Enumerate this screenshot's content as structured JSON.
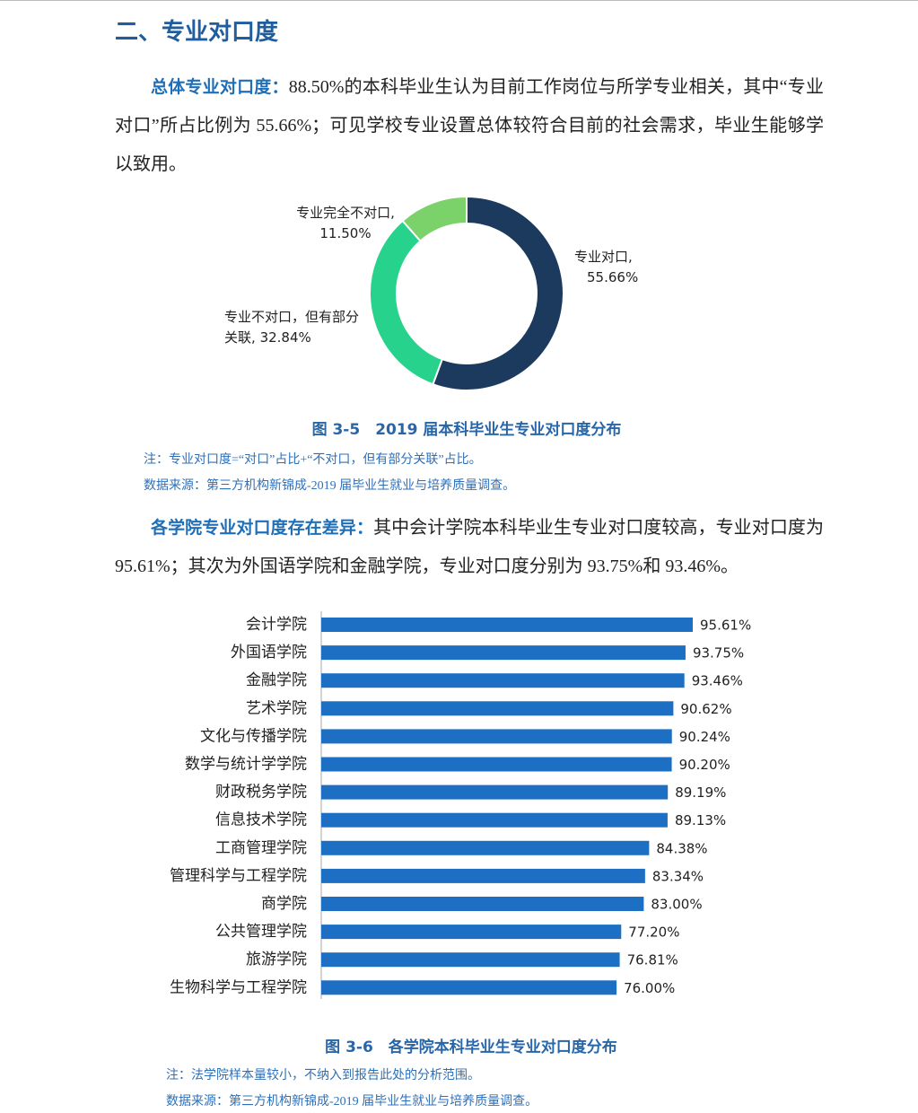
{
  "heading": "二、专业对口度",
  "paragraph_1": {
    "lead": "总体专业对口度：",
    "text": "88.50%的本科毕业生认为目前工作岗位与所学专业相关，其中“专业对口”所占比例为 55.66%；可见学校专业设置总体较符合目前的社会需求，毕业生能够学以致用。"
  },
  "figure_1": {
    "caption": "图 3-5　2019 届本科毕业生专业对口度分布",
    "note": "注：专业对口度=“对口”占比+“不对口，但有部分关联”占比。",
    "source": "数据来源：第三方机构新锦成-2019 届毕业生就业与培养质量调查。"
  },
  "paragraph_2": {
    "lead": "各学院专业对口度存在差异：",
    "text": "其中会计学院本科毕业生专业对口度较高，专业对口度为 95.61%；其次为外国语学院和金融学院，专业对口度分别为 93.75%和 93.46%。"
  },
  "figure_2": {
    "caption": "图 3-6　各学院本科毕业生专业对口度分布",
    "note": "注：法学院样本量较小，不纳入到报告此处的分析范围。",
    "source": "数据来源：第三方机构新锦成-2019 届毕业生就业与培养质量调查。"
  },
  "chart_data": [
    {
      "type": "donut",
      "categories": [
        "专业对口,",
        "专业不对口，但有部分关联,",
        "专业完全不对口,"
      ],
      "values": [
        55.66,
        32.84,
        11.5
      ],
      "value_labels": [
        "55.66%",
        "32.84%",
        "11.50%"
      ],
      "colors": [
        "#1b3a5e",
        "#27d38c",
        "#7bd16a"
      ]
    },
    {
      "type": "bar",
      "orientation": "horizontal",
      "categories": [
        "会计学院",
        "外国语学院",
        "金融学院",
        "艺术学院",
        "文化与传播学院",
        "数学与统计学学院",
        "财政税务学院",
        "信息技术学院",
        "工商管理学院",
        "管理科学与工程学院",
        "商学院",
        "公共管理学院",
        "旅游学院",
        "生物科学与工程学院"
      ],
      "values": [
        95.61,
        93.75,
        93.46,
        90.62,
        90.24,
        90.2,
        89.19,
        89.13,
        84.38,
        83.34,
        83.0,
        77.2,
        76.81,
        76.0
      ],
      "value_labels": [
        "95.61%",
        "93.75%",
        "93.46%",
        "90.62%",
        "90.24%",
        "90.20%",
        "89.19%",
        "89.13%",
        "84.38%",
        "83.34%",
        "83.00%",
        "77.20%",
        "76.81%",
        "76.00%"
      ],
      "color": "#1d6fc4"
    }
  ]
}
